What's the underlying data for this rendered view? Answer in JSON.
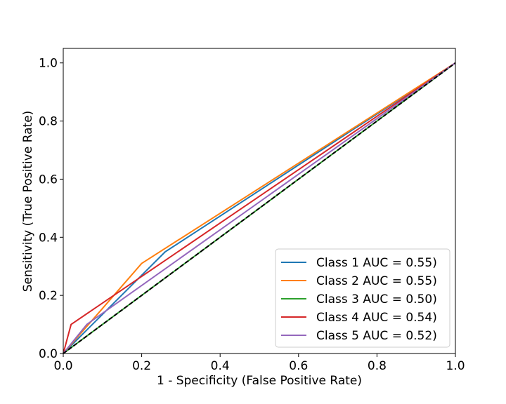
{
  "chart_data": {
    "type": "line",
    "title": "",
    "xlabel": "1 - Specificity (False Positive Rate)",
    "ylabel": "Sensitivity (True Positive Rate)",
    "xlim": [
      0.0,
      1.0
    ],
    "ylim": [
      0.0,
      1.05
    ],
    "xticks": [
      "0.0",
      "0.2",
      "0.4",
      "0.6",
      "0.8",
      "1.0"
    ],
    "yticks": [
      "0.0",
      "0.2",
      "0.4",
      "0.6",
      "0.8",
      "1.0"
    ],
    "grid": false,
    "legend_position": "lower-right",
    "series": [
      {
        "name": "Class 1 AUC = 0.55)",
        "color": "#1f77b4",
        "x": [
          0.0,
          0.26,
          1.0
        ],
        "y": [
          0.0,
          0.35,
          1.0
        ]
      },
      {
        "name": "Class 2 AUC = 0.55)",
        "color": "#ff7f0e",
        "x": [
          0.0,
          0.2,
          1.0
        ],
        "y": [
          0.0,
          0.31,
          1.0
        ]
      },
      {
        "name": "Class 3 AUC = 0.50)",
        "color": "#2ca02c",
        "x": [
          0.0,
          1.0
        ],
        "y": [
          0.0,
          1.0
        ]
      },
      {
        "name": "Class 4 AUC = 0.54)",
        "color": "#d62728",
        "x": [
          0.0,
          0.02,
          1.0
        ],
        "y": [
          0.0,
          0.1,
          1.0
        ]
      },
      {
        "name": "Class 5 AUC = 0.52)",
        "color": "#9467bd",
        "x": [
          0.0,
          0.06,
          1.0
        ],
        "y": [
          0.0,
          0.1,
          1.0
        ]
      }
    ],
    "reference_line": {
      "color": "#000000",
      "style": "dashed",
      "x": [
        0.0,
        1.0
      ],
      "y": [
        0.0,
        1.0
      ]
    }
  }
}
